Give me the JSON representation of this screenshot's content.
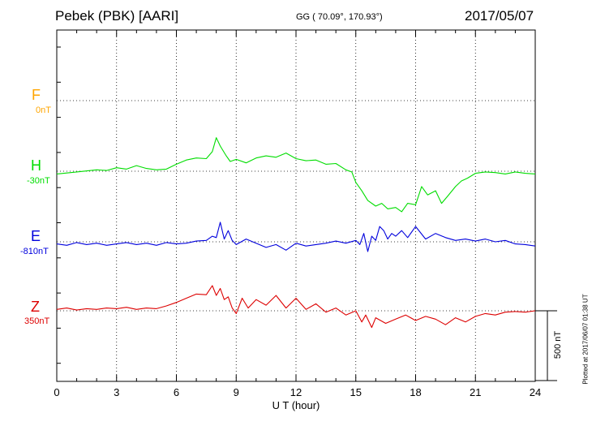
{
  "header": {
    "station": "Pebek (PBK)  [AARI]",
    "coords": "GG ( 70.09°, 170.93°)",
    "date": "2017/05/07"
  },
  "scale_bar": "500 nT",
  "plotted_note": "Plotted at 2017/06/07 01:38 UT",
  "chart_data": {
    "type": "line",
    "xlabel": "U T (hour)",
    "xlim": [
      0,
      24
    ],
    "xticks": [
      "0",
      "3",
      "6",
      "9",
      "12",
      "15",
      "18",
      "21",
      "24"
    ],
    "grid": true,
    "channels": [
      {
        "name": "F",
        "offset": "0nT",
        "color": "#FFA500",
        "x": [],
        "y": []
      },
      {
        "name": "H",
        "offset": "-30nT",
        "color": "#00DD00",
        "x": [
          0,
          1,
          2,
          2.5,
          3,
          3.5,
          4,
          4.5,
          5,
          5.5,
          6,
          6.5,
          7,
          7.5,
          7.8,
          8,
          8.2,
          8.5,
          8.7,
          9,
          9.5,
          10,
          10.5,
          11,
          11.5,
          12,
          12.5,
          13,
          13.5,
          14,
          14.5,
          14.8,
          15,
          15.3,
          15.6,
          16,
          16.3,
          16.6,
          17,
          17.3,
          17.6,
          18,
          18.3,
          18.6,
          19,
          19.3,
          19.6,
          20,
          20.3,
          20.6,
          21,
          21.5,
          22,
          22.5,
          23,
          23.5,
          24
        ],
        "y": [
          -20,
          -5,
          10,
          5,
          25,
          15,
          40,
          20,
          10,
          15,
          50,
          80,
          95,
          90,
          140,
          240,
          180,
          110,
          70,
          85,
          60,
          95,
          110,
          100,
          130,
          90,
          75,
          80,
          50,
          55,
          10,
          -5,
          -80,
          -140,
          -210,
          -250,
          -230,
          -270,
          -260,
          -290,
          -230,
          -240,
          -110,
          -170,
          -140,
          -230,
          -180,
          -110,
          -70,
          -50,
          -15,
          -5,
          -10,
          -20,
          -5,
          -15,
          -20
        ]
      },
      {
        "name": "E",
        "offset": "-810nT",
        "color": "#0000DD",
        "x": [
          0,
          0.5,
          1,
          1.5,
          2,
          2.5,
          3,
          3.5,
          4,
          4.5,
          5,
          5.5,
          6,
          6.5,
          7,
          7.5,
          7.8,
          8,
          8.2,
          8.4,
          8.6,
          8.8,
          9,
          9.5,
          10,
          10.5,
          11,
          11.5,
          12,
          12.5,
          13,
          13.5,
          14,
          14.5,
          15,
          15.2,
          15.4,
          15.6,
          15.8,
          16,
          16.2,
          16.4,
          16.6,
          16.8,
          17,
          17.3,
          17.6,
          18,
          18.5,
          19,
          19.5,
          20,
          20.5,
          21,
          21.5,
          22,
          22.5,
          23,
          23.5,
          24
        ],
        "y": [
          -15,
          -25,
          -5,
          -20,
          -10,
          -25,
          -15,
          -5,
          -20,
          -10,
          -25,
          -5,
          -15,
          -10,
          5,
          10,
          40,
          30,
          140,
          20,
          80,
          10,
          -20,
          20,
          -10,
          -40,
          -20,
          -60,
          -10,
          -30,
          -20,
          -10,
          5,
          -10,
          10,
          -20,
          60,
          -70,
          40,
          10,
          110,
          80,
          20,
          60,
          40,
          80,
          30,
          110,
          20,
          60,
          30,
          10,
          20,
          5,
          20,
          0,
          10,
          -15,
          -20,
          -30
        ]
      },
      {
        "name": "Z",
        "offset": "350nT",
        "color": "#DD0000",
        "x": [
          0,
          0.5,
          1,
          1.5,
          2,
          2.5,
          3,
          3.5,
          4,
          4.5,
          5,
          5.5,
          6,
          6.5,
          7,
          7.5,
          7.8,
          8,
          8.2,
          8.4,
          8.6,
          8.8,
          9,
          9.3,
          9.6,
          10,
          10.5,
          11,
          11.5,
          12,
          12.5,
          13,
          13.5,
          14,
          14.5,
          15,
          15.3,
          15.5,
          15.8,
          16,
          16.5,
          17,
          17.5,
          18,
          18.5,
          19,
          19.5,
          20,
          20.5,
          21,
          21.5,
          22,
          22.5,
          23,
          23.5,
          24
        ],
        "y": [
          10,
          20,
          5,
          15,
          10,
          20,
          15,
          25,
          10,
          20,
          15,
          35,
          60,
          90,
          120,
          115,
          180,
          110,
          160,
          80,
          100,
          20,
          -20,
          90,
          20,
          80,
          40,
          110,
          20,
          90,
          10,
          50,
          -10,
          20,
          -30,
          0,
          -80,
          -30,
          -120,
          -50,
          -90,
          -60,
          -30,
          -70,
          -40,
          -60,
          -100,
          -50,
          -80,
          -40,
          -20,
          -30,
          -10,
          -5,
          -10,
          0
        ]
      }
    ],
    "scale_bar_nT": 500
  }
}
